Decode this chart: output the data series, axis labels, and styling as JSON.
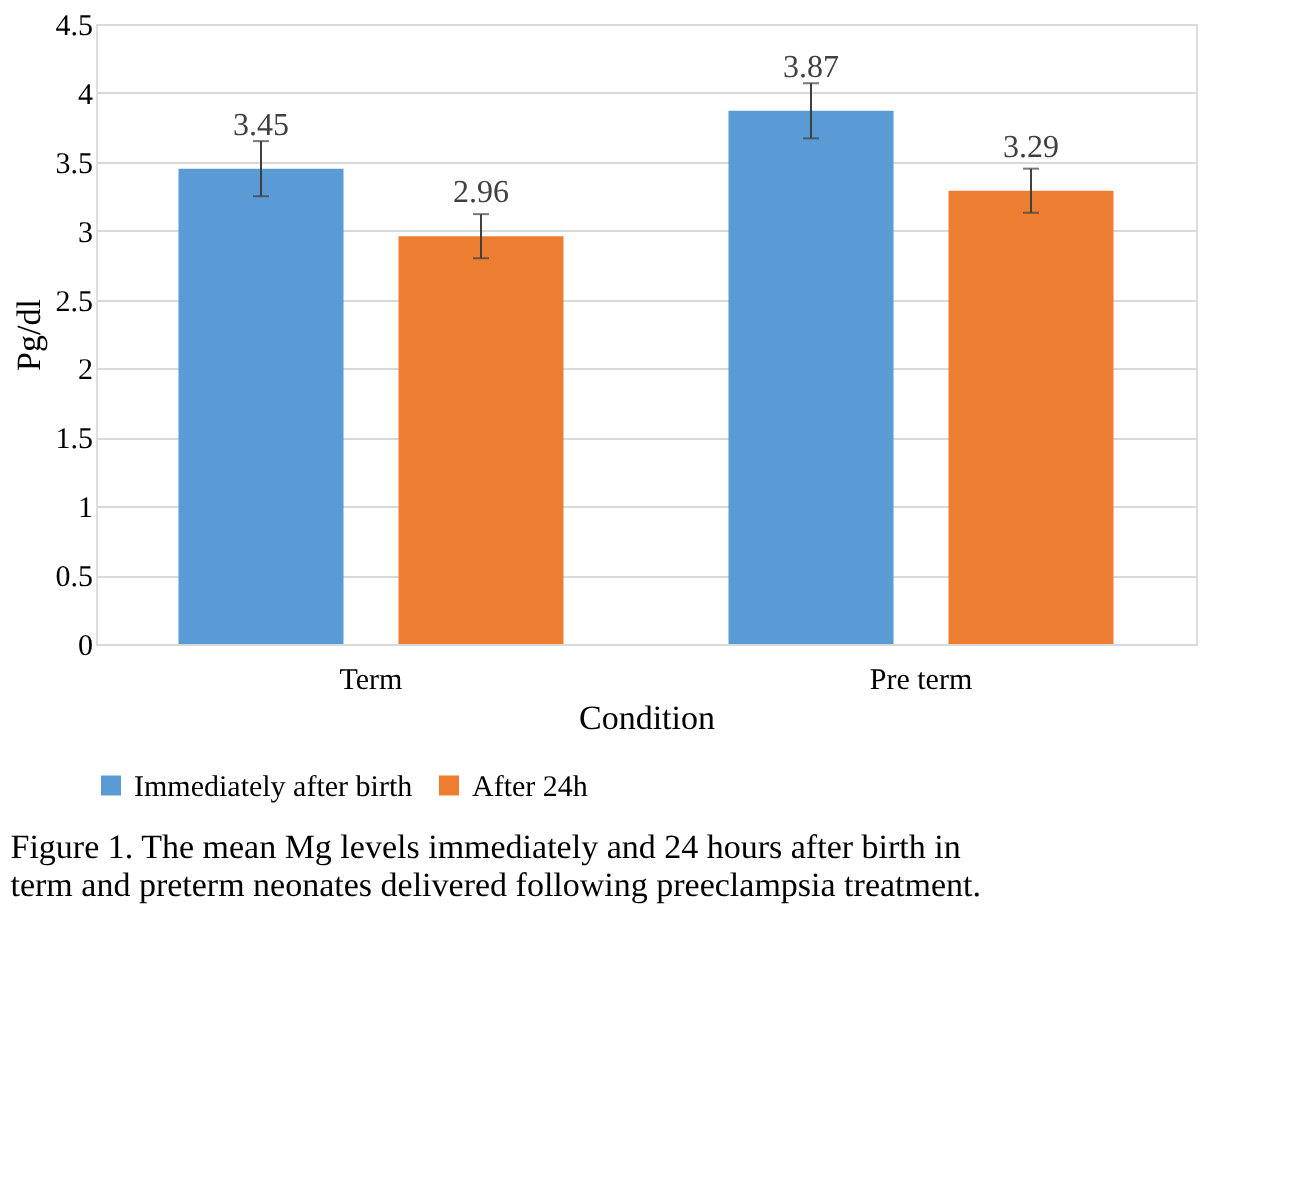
{
  "chart_data": {
    "type": "bar",
    "xlabel": "Condition",
    "ylabel": "Pg/dl",
    "categories": [
      "Term",
      "Pre term"
    ],
    "series": [
      {
        "name": "Immediately after birth",
        "color": "#5b9bd5",
        "values": [
          3.45,
          3.87
        ],
        "errors": [
          0.2,
          0.2
        ]
      },
      {
        "name": "After 24h",
        "color": "#ed7d31",
        "values": [
          2.96,
          3.29
        ],
        "errors": [
          0.16,
          0.16
        ]
      }
    ],
    "ylim": [
      0,
      4.5
    ],
    "yticks": [
      0,
      0.5,
      1,
      1.5,
      2,
      2.5,
      3,
      3.5,
      4,
      4.5
    ],
    "grid": "y",
    "legend": "bottom",
    "data_labels": true,
    "annotations": [
      "Figure 1. The mean Mg levels immediately and 24 hours after birth in term and preterm neonates delivered following preeclampsia treatment."
    ]
  }
}
